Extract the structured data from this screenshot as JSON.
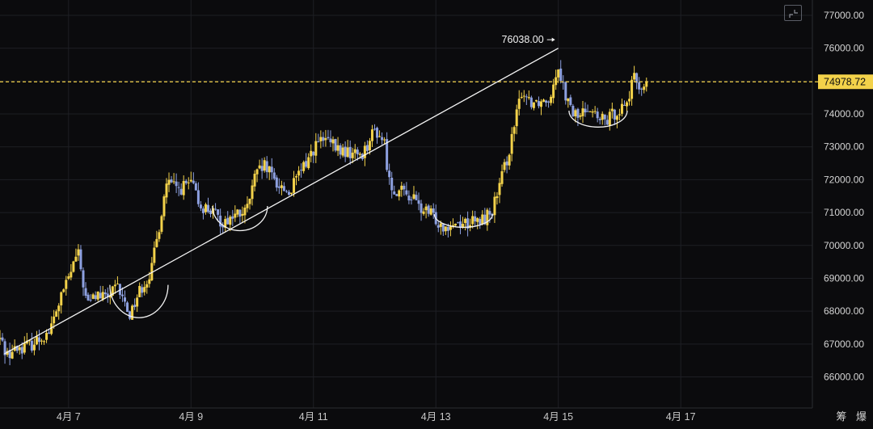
{
  "colors": {
    "background": "#0b0b0d",
    "grid": "#1e1f24",
    "up": "#f3d24a",
    "down": "#8da0e0",
    "current_price_line": "#f3d24a",
    "trend_line": "#f5f5f5",
    "axis_text": "#d4d4d4"
  },
  "toolbar": {
    "expand_icon": "expand-corner-icon"
  },
  "corner_text": "筹 爆",
  "chart_data": {
    "type": "candlestick",
    "title": "",
    "ylim": [
      65600,
      77300
    ],
    "y_ticks": [
      "66000.00",
      "67000.00",
      "68000.00",
      "69000.00",
      "70000.00",
      "71000.00",
      "72000.00",
      "73000.00",
      "74000.00",
      "75000.00",
      "76000.00",
      "77000.00"
    ],
    "x_ticks": [
      "4月 7",
      "4月 9",
      "4月 11",
      "4月 13",
      "4月 15",
      "4月 17"
    ],
    "x_tick_days": [
      7,
      9,
      11,
      13,
      15,
      17
    ],
    "x_range_days": [
      5.88,
      19.15
    ],
    "grid": true,
    "current_price": 74978.72,
    "current_price_label": "74978.72",
    "peak": {
      "label": "76038.00",
      "value": 76038.0,
      "day": 15.0
    },
    "trend_line": [
      [
        5.95,
        66700
      ],
      [
        15.0,
        76000
      ]
    ],
    "annotations_arcs": [
      {
        "center_day": 8.15,
        "low": 67800,
        "high": 68800
      },
      {
        "center_day": 9.8,
        "low": 70450,
        "high": 71200
      },
      {
        "center_day": 13.45,
        "low": 70550,
        "high": 70950
      },
      {
        "center_day": 15.65,
        "low": 73600,
        "high": 74100
      }
    ],
    "series_path": [
      [
        5.88,
        67150
      ],
      [
        6.0,
        66700
      ],
      [
        6.2,
        66900
      ],
      [
        6.4,
        67000
      ],
      [
        6.7,
        67400
      ],
      [
        6.85,
        68300
      ],
      [
        7.0,
        69000
      ],
      [
        7.15,
        69800
      ],
      [
        7.3,
        68200
      ],
      [
        7.45,
        68500
      ],
      [
        7.6,
        68400
      ],
      [
        7.8,
        68700
      ],
      [
        8.0,
        67900
      ],
      [
        8.15,
        68600
      ],
      [
        8.35,
        69200
      ],
      [
        8.5,
        70800
      ],
      [
        8.6,
        71900
      ],
      [
        8.8,
        71700
      ],
      [
        9.0,
        71900
      ],
      [
        9.15,
        71200
      ],
      [
        9.3,
        71100
      ],
      [
        9.5,
        70700
      ],
      [
        9.7,
        70900
      ],
      [
        9.9,
        71000
      ],
      [
        10.05,
        72100
      ],
      [
        10.2,
        72400
      ],
      [
        10.4,
        71900
      ],
      [
        10.6,
        71600
      ],
      [
        10.75,
        72100
      ],
      [
        10.9,
        72600
      ],
      [
        11.05,
        73100
      ],
      [
        11.2,
        73200
      ],
      [
        11.4,
        72900
      ],
      [
        11.6,
        72800
      ],
      [
        11.8,
        72800
      ],
      [
        12.0,
        73500
      ],
      [
        12.15,
        73200
      ],
      [
        12.25,
        71800
      ],
      [
        12.45,
        71600
      ],
      [
        12.6,
        71500
      ],
      [
        12.75,
        71100
      ],
      [
        12.95,
        70900
      ],
      [
        13.1,
        70600
      ],
      [
        13.3,
        70700
      ],
      [
        13.5,
        70700
      ],
      [
        13.7,
        70700
      ],
      [
        13.9,
        71000
      ],
      [
        14.0,
        71500
      ],
      [
        14.1,
        72200
      ],
      [
        14.25,
        73300
      ],
      [
        14.4,
        74700
      ],
      [
        14.55,
        74400
      ],
      [
        14.7,
        74400
      ],
      [
        14.85,
        74500
      ],
      [
        15.0,
        75500
      ],
      [
        15.1,
        74700
      ],
      [
        15.2,
        74100
      ],
      [
        15.35,
        73900
      ],
      [
        15.5,
        74300
      ],
      [
        15.65,
        73800
      ],
      [
        15.8,
        73800
      ],
      [
        15.95,
        74100
      ],
      [
        16.1,
        74300
      ],
      [
        16.25,
        75100
      ],
      [
        16.35,
        74800
      ],
      [
        16.45,
        74900
      ]
    ]
  }
}
